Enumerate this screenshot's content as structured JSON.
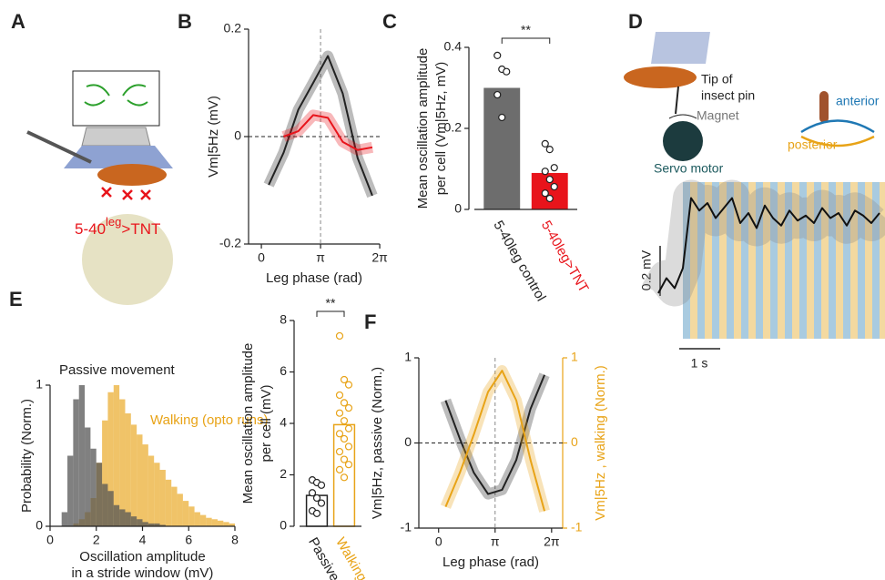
{
  "panel_labels": [
    "A",
    "B",
    "C",
    "D",
    "E",
    "F"
  ],
  "diagrams": {
    "A": {
      "label_parts": [
        "5-40",
        "leg",
        ">TNT"
      ]
    },
    "D": {
      "pin_label": [
        "Tip of",
        "insect pin"
      ],
      "magnet": "Magnet",
      "motor": "Servo motor",
      "anterior": "anterior",
      "posterior": "posterior"
    }
  },
  "chart_data": [
    {
      "type": "line",
      "ylabel": "Vm|5Hz (mV)",
      "xlabel": "Leg phase (rad)",
      "xlim": [
        -0.68,
        6.28
      ],
      "ylim": [
        -0.2,
        0.2
      ],
      "xticks": [
        0,
        {
          "value": 3.1416,
          "label": "π"
        },
        {
          "value": 6.2832,
          "label": "2π"
        }
      ],
      "yticks": [
        -0.2,
        0,
        0.2
      ],
      "crosshair": true,
      "x": [
        0.39,
        1.18,
        1.96,
        2.75,
        3.53,
        4.32,
        5.11,
        5.89
      ],
      "series": [
        {
          "color": "#222222",
          "values": [
            -0.09,
            -0.03,
            0.05,
            0.1,
            0.15,
            0.08,
            -0.04,
            -0.11
          ]
        },
        {
          "color": "#e8141b",
          "values": [
            null,
            0.0,
            0.01,
            0.04,
            0.035,
            -0.01,
            -0.025,
            -0.02
          ]
        }
      ]
    },
    {
      "type": "bar",
      "ylabel": [
        "Mean oscillation amplitude",
        "per cell (Vm|5Hz, mV)"
      ],
      "categories": [
        "5-40leg control",
        "5-40leg>TNT"
      ],
      "values": [
        0.3,
        0.09
      ],
      "colors": [
        "#6d6d6d",
        "#e8141b"
      ],
      "label_colors": [
        "#222222",
        "#e8141b"
      ],
      "filled": true,
      "points": [
        [
          0.38,
          0.346,
          0.34,
          0.283,
          0.227
        ],
        [
          0.162,
          0.148,
          0.103,
          0.094,
          0.074,
          0.056,
          0.04,
          0.027
        ]
      ],
      "significance": "**",
      "ylim": [
        0,
        0.4
      ],
      "yticks": [
        0,
        0.2,
        0.4
      ]
    },
    {
      "type": "line",
      "scalebar_y": {
        "value": 0.2,
        "label": "0.2 mV"
      },
      "scalebar_x": {
        "value": 1,
        "label": "1 s"
      },
      "x": [
        -0.6,
        -0.4,
        -0.2,
        0,
        0.2,
        0.4,
        0.6,
        0.8,
        1,
        1.2,
        1.4,
        1.6,
        1.8,
        2,
        2.2,
        2.4,
        2.6,
        2.8,
        3,
        3.2,
        3.4,
        3.6,
        3.8,
        4,
        4.2,
        4.4,
        4.6,
        4.8
      ],
      "series": [
        {
          "color": "#111111",
          "values": [
            -0.08,
            -0.02,
            -0.06,
            0.02,
            0.3,
            0.25,
            0.28,
            0.22,
            0.26,
            0.3,
            0.2,
            0.24,
            0.18,
            0.27,
            0.22,
            0.19,
            0.25,
            0.21,
            0.23,
            0.2,
            0.26,
            0.22,
            0.24,
            0.19,
            0.25,
            0.23,
            0.2,
            0.24
          ]
        }
      ]
    },
    {
      "type": "histogram",
      "ylabel": "Probability (Norm.)",
      "xlabel": [
        "Oscillation amplitude",
        "in a stride window (mV)"
      ],
      "xlim": [
        0,
        8
      ],
      "ylim": [
        0,
        1
      ],
      "xticks": [
        0,
        2,
        4,
        6,
        8
      ],
      "yticks": [
        0,
        1
      ],
      "bins": [
        0,
        0.25,
        0.5,
        0.75,
        1,
        1.25,
        1.5,
        1.75,
        2,
        2.25,
        2.5,
        2.75,
        3,
        3.25,
        3.5,
        3.75,
        4,
        4.25,
        4.5,
        4.75,
        5,
        5.25,
        5.5,
        5.75,
        6,
        6.25,
        6.5,
        6.75,
        7,
        7.25,
        7.5,
        7.75,
        8
      ],
      "series": [
        {
          "name": "Walking (opto runs)",
          "color": "#e8a317",
          "values": [
            0,
            0,
            0,
            0,
            0.02,
            0.05,
            0.1,
            0.2,
            0.45,
            0.75,
            0.95,
            1,
            0.9,
            0.8,
            0.72,
            0.65,
            0.58,
            0.5,
            0.45,
            0.4,
            0.33,
            0.28,
            0.23,
            0.18,
            0.14,
            0.1,
            0.08,
            0.06,
            0.05,
            0.04,
            0.03,
            0.02
          ]
        },
        {
          "name": "Passive movement",
          "color": "#555555",
          "values": [
            0,
            0,
            0.1,
            0.5,
            0.9,
            1,
            0.7,
            0.55,
            0.45,
            0.3,
            0.25,
            0.15,
            0.12,
            0.1,
            0.07,
            0.05,
            0.03,
            0.02,
            0.02,
            0.01,
            0,
            0,
            0,
            0,
            0,
            0,
            0,
            0,
            0,
            0,
            0,
            0
          ]
        }
      ]
    },
    {
      "type": "bar",
      "ylabel": [
        "Mean oscillation amplitude",
        "per cell (mV)"
      ],
      "categories": [
        "Passive",
        "Walking"
      ],
      "values": [
        1.2,
        3.95
      ],
      "colors": [
        "#222222",
        "#e8a317"
      ],
      "label_colors": [
        "#222222",
        "#e8a317"
      ],
      "filled": false,
      "points": [
        [
          1.8,
          1.7,
          1.6,
          1.3,
          1.1,
          0.9,
          0.6,
          0.5
        ],
        [
          7.4,
          5.7,
          5.5,
          5.1,
          4.8,
          4.6,
          4.4,
          4.1,
          3.8,
          3.6,
          3.4,
          3.1,
          2.9,
          2.6,
          2.4,
          2.2,
          1.9
        ]
      ],
      "significance": "**",
      "ylim": [
        0,
        8
      ],
      "yticks": [
        0,
        2,
        4,
        6,
        8
      ]
    },
    {
      "type": "line",
      "ylabel": "Vm|5Hz, passive (Norm.)",
      "y2label": "Vm|5Hz , walking (Norm.)",
      "xlabel": "Leg phase (rad)",
      "xlim": [
        -1.1,
        6.9
      ],
      "ylim": [
        -1,
        1
      ],
      "y2lim": [
        -1,
        1
      ],
      "xticks": [
        0,
        {
          "value": 3.1416,
          "label": "π"
        },
        {
          "value": 6.2832,
          "label": "2π"
        }
      ],
      "yticks": [
        -1,
        0,
        1
      ],
      "y2ticks": [
        -1,
        0,
        1
      ],
      "y2color": "#e8a317",
      "crosshair": true,
      "x": [
        0.39,
        1.18,
        1.96,
        2.75,
        3.53,
        4.32,
        5.11,
        5.89
      ],
      "series": [
        {
          "color": "#222222",
          "values": [
            0.5,
            0.05,
            -0.35,
            -0.6,
            -0.55,
            -0.2,
            0.4,
            0.8
          ]
        },
        {
          "color": "#e8a317",
          "axis": "y2",
          "values": [
            -0.75,
            -0.35,
            0.1,
            0.6,
            0.85,
            0.5,
            -0.2,
            -0.8
          ]
        }
      ]
    }
  ]
}
